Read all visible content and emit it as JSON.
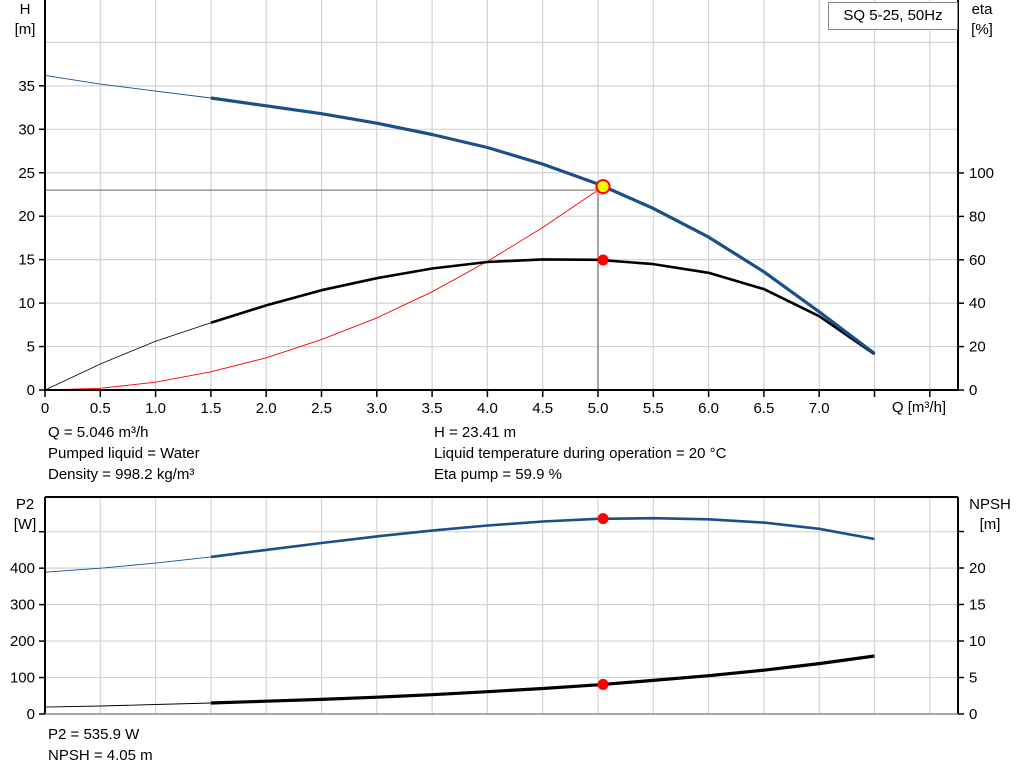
{
  "chart_data": [
    {
      "type": "line",
      "title": "SQ 5-25, 50Hz",
      "xlabel": "Q [m³/h]",
      "ylabel": "H [m]",
      "ylabel_right": "eta [%]",
      "x_ticks": [
        "0",
        "0.5",
        "1.0",
        "1.5",
        "2.0",
        "2.5",
        "3.0",
        "3.5",
        "4.0",
        "4.5",
        "5.0",
        "5.5",
        "6.0",
        "6.5",
        "7.0"
      ],
      "y_ticks": [
        "0",
        "5",
        "10",
        "15",
        "20",
        "25",
        "30",
        "35"
      ],
      "y_right_ticks": [
        "0",
        "20",
        "40",
        "60",
        "80",
        "100"
      ],
      "xlim": [
        0,
        8.25
      ],
      "ylim": [
        0,
        40
      ],
      "ylim_right": [
        0,
        184
      ],
      "grid": true,
      "series": [
        {
          "name": "H",
          "axis": "left",
          "color": "#1a4f8a",
          "x": [
            0,
            0.5,
            1.0,
            1.5,
            2.0,
            2.5,
            3.0,
            3.5,
            4.0,
            4.5,
            5.0,
            5.5,
            6.0,
            6.5,
            7.0,
            7.5
          ],
          "y": [
            36.2,
            35.2,
            34.4,
            33.6,
            32.7,
            31.8,
            30.7,
            29.4,
            27.9,
            26.0,
            23.7,
            20.9,
            17.6,
            13.6,
            9.0,
            4.2
          ],
          "thick_from": 1.5
        },
        {
          "name": "eta",
          "axis": "right",
          "color": "#000000",
          "x": [
            0,
            0.5,
            1.0,
            1.5,
            2.0,
            2.5,
            3.0,
            3.5,
            4.0,
            4.5,
            5.0,
            5.5,
            6.0,
            6.5,
            7.0,
            7.5
          ],
          "y": [
            0,
            12,
            22.5,
            31,
            39,
            46,
            51.5,
            56,
            59,
            60.2,
            60,
            58,
            54,
            46.5,
            34,
            16.5
          ],
          "thick_from": 1.5
        },
        {
          "name": "system curve",
          "axis": "left",
          "color": "#ff0000",
          "x": [
            0,
            0.5,
            1.0,
            1.5,
            2.0,
            2.5,
            3.0,
            3.5,
            4.0,
            4.5,
            5.046
          ],
          "y": [
            0,
            0.2,
            0.9,
            2.1,
            3.7,
            5.8,
            8.3,
            11.3,
            14.8,
            18.7,
            23.41
          ]
        }
      ],
      "operating_point": {
        "Q": 5.046,
        "H": 23.41,
        "eta": 59.9
      }
    },
    {
      "type": "line",
      "xlabel": "Q [m³/h]",
      "ylabel": "P2 [W]",
      "ylabel_right": "NPSH [m]",
      "y_ticks": [
        "0",
        "100",
        "200",
        "300",
        "400"
      ],
      "y_right_ticks": [
        "0",
        "5",
        "10",
        "15",
        "20"
      ],
      "ylim": [
        0,
        595
      ],
      "ylim_right": [
        0,
        29.7
      ],
      "grid": true,
      "series": [
        {
          "name": "P2",
          "axis": "left",
          "color": "#1a4f8a",
          "x": [
            0,
            0.5,
            1.0,
            1.5,
            2.0,
            2.5,
            3.0,
            3.5,
            4.0,
            4.5,
            5.0,
            5.5,
            6.0,
            6.5,
            7.0,
            7.5
          ],
          "y": [
            389,
            400,
            414,
            431,
            450,
            469,
            487,
            503,
            517,
            528,
            535.5,
            537,
            534,
            525,
            508,
            480
          ],
          "thick_from": 1.5
        },
        {
          "name": "NPSH",
          "axis": "right",
          "color": "#000000",
          "x": [
            0,
            0.5,
            1.0,
            1.5,
            2.0,
            2.5,
            3.0,
            3.5,
            4.0,
            4.5,
            5.0,
            5.5,
            6.0,
            6.5,
            7.0,
            7.5
          ],
          "y": [
            0.95,
            1.1,
            1.3,
            1.5,
            1.75,
            2.0,
            2.3,
            2.65,
            3.05,
            3.5,
            4.0,
            4.6,
            5.25,
            6.0,
            6.9,
            7.95
          ],
          "thick_from": 1.5
        }
      ],
      "operating_point": {
        "Q": 5.046,
        "P2": 535.9,
        "NPSH": 4.05
      }
    }
  ],
  "top_chart": {
    "legend": "SQ 5-25, 50Hz",
    "y_left_title": "H",
    "y_left_unit": "[m]",
    "y_right_title": "eta",
    "y_right_unit": "[%]",
    "x_title": "Q [m³/h]"
  },
  "bottom_chart": {
    "y_left_title": "P2",
    "y_left_unit": "[W]",
    "y_right_title": "NPSH",
    "y_right_unit": "[m]"
  },
  "info": {
    "q": "Q = 5.046 m³/h",
    "liquid": "Pumped liquid = Water",
    "density": "Density = 998.2 kg/m³",
    "h": "H = 23.41 m",
    "temp": "Liquid temperature during operation = 20 °C",
    "eta": "Eta pump = 59.9 %",
    "p2": "P2 = 535.9 W",
    "npsh": "NPSH = 4.05 m"
  },
  "colors": {
    "pump_curve": "#1a4f8a",
    "eta_curve": "#000000",
    "system_curve": "#ff0000",
    "op_point_fill": "#ffff00",
    "op_point_stroke": "#ff0000",
    "grid": "#d3d3d3"
  }
}
